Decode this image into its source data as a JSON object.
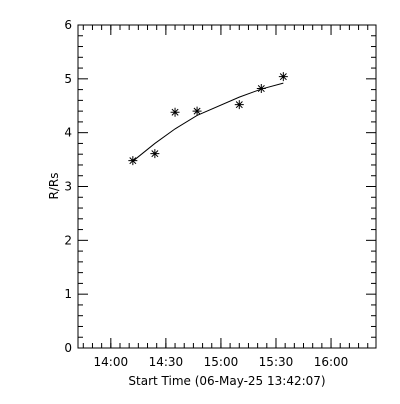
{
  "chart_data": {
    "type": "scatter",
    "xlabel": "Start Time (06-May-25 13:42:07)",
    "ylabel": "R/Rs",
    "x": [
      "14:12",
      "14:24",
      "14:35",
      "14:47",
      "15:10",
      "15:22",
      "15:34"
    ],
    "series": [
      {
        "values": [
          3.48,
          3.61,
          4.38,
          4.4,
          4.52,
          4.82,
          5.04
        ],
        "marker": "asterisk",
        "color": "#000000"
      },
      {
        "values": [
          3.47,
          3.8,
          4.07,
          4.32,
          4.66,
          4.81,
          4.92
        ],
        "marker": "line",
        "color": "#000000"
      }
    ],
    "xlim": [
      "13:42:07",
      "16:24:30"
    ],
    "xticks": [
      "14:00",
      "14:30",
      "15:00",
      "15:30",
      "16:00"
    ],
    "ylim": [
      0,
      6
    ],
    "yticks": [
      0,
      1,
      2,
      3,
      4,
      5,
      6
    ]
  }
}
